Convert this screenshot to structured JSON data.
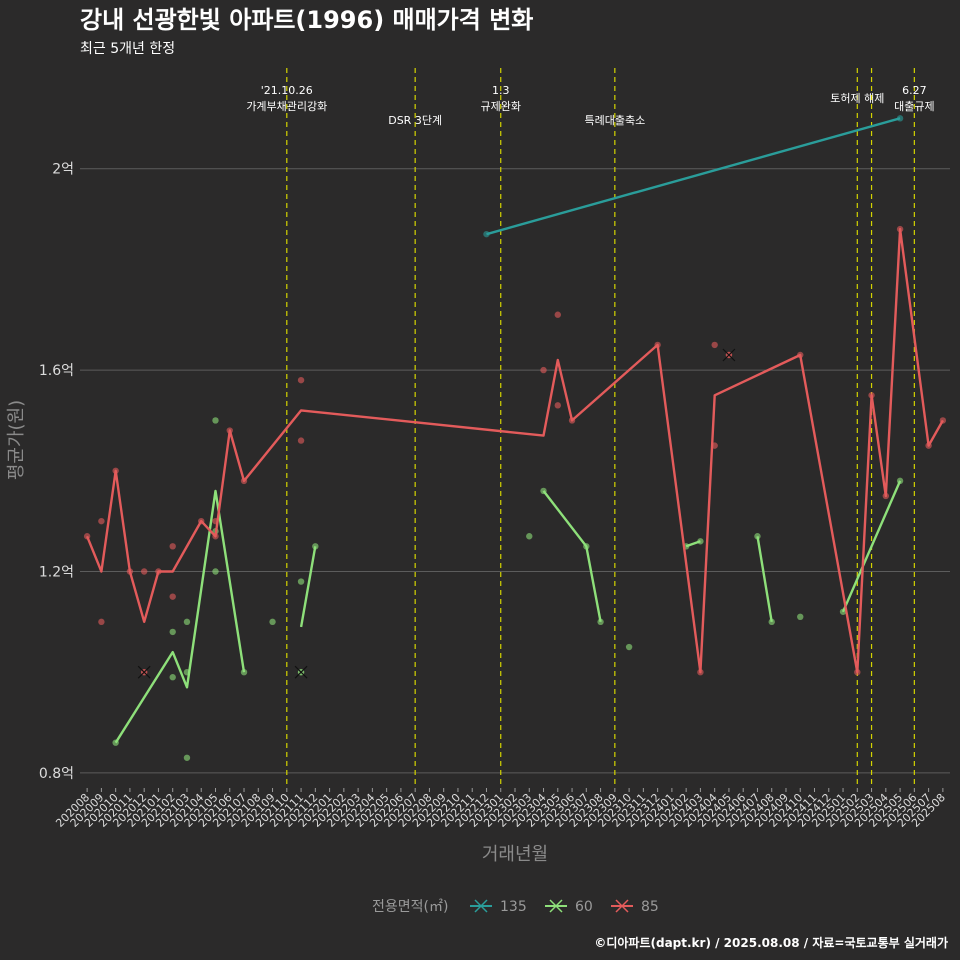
{
  "chart_data": {
    "type": "line",
    "title": "강내 선광한빛 아파트(1996) 매매가격 변화",
    "subtitle": "최근 5개년 한정",
    "xlabel": "거래년월",
    "ylabel": "평균가(원)",
    "caption": "©디아파트(dapt.kr) / 2025.08.08 / 자료=국토교통부 실거래가",
    "grid": true,
    "legend_position": "bottom",
    "legend_title": "전용면적(㎡)",
    "yticks": [
      {
        "value": 0.8,
        "label": "0.8억"
      },
      {
        "value": 1.2,
        "label": "1.2억"
      },
      {
        "value": 1.6,
        "label": "1.6억"
      },
      {
        "value": 2.0,
        "label": "2억"
      }
    ],
    "ylim": [
      0.77,
      2.2
    ],
    "categories": [
      "202008",
      "202009",
      "202010",
      "202011",
      "202012",
      "202101",
      "202102",
      "202103",
      "202104",
      "202105",
      "202106",
      "202107",
      "202108",
      "202109",
      "202110",
      "202111",
      "202112",
      "202201",
      "202202",
      "202203",
      "202204",
      "202205",
      "202206",
      "202207",
      "202208",
      "202209",
      "202210",
      "202211",
      "202212",
      "202301",
      "202302",
      "202303",
      "202304",
      "202305",
      "202306",
      "202307",
      "202308",
      "202309",
      "202310",
      "202311",
      "202312",
      "202401",
      "202402",
      "202403",
      "202404",
      "202405",
      "202406",
      "202407",
      "202408",
      "202409",
      "202410",
      "202411",
      "202412",
      "202501",
      "202502",
      "202503",
      "202504",
      "202505",
      "202506",
      "202507",
      "202508"
    ],
    "events": [
      {
        "x": "202110",
        "lines": [
          "'21.10.26",
          "가계부채관리강화"
        ]
      },
      {
        "x": "202207",
        "lines": [
          "DSR 3단계"
        ]
      },
      {
        "x": "202301",
        "lines": [
          "1.3",
          "규제완화"
        ]
      },
      {
        "x": "202309",
        "lines": [
          "특례대출축소"
        ]
      },
      {
        "x": "202502",
        "lines": [
          "토허제 해제"
        ]
      },
      {
        "x": "202503",
        "lines": []
      },
      {
        "x": "202506",
        "lines": [
          "6.27",
          "대출규제"
        ]
      }
    ],
    "series": [
      {
        "name": "135",
        "color": "#2a9d9a",
        "line": [
          [
            "202212",
            1.87
          ],
          [
            "202505",
            2.1
          ]
        ],
        "points": [
          [
            "202212",
            1.87
          ],
          [
            "202505",
            2.1
          ]
        ],
        "crosses": []
      },
      {
        "name": "60",
        "color": "#8ee07a",
        "line": [
          [
            "202010",
            0.86
          ],
          [
            "202102",
            1.04
          ],
          [
            "202103",
            0.97
          ],
          [
            "202105",
            1.36
          ],
          [
            "202107",
            1.0
          ],
          null,
          [
            "202111",
            1.09
          ],
          [
            "202112",
            1.25
          ],
          null,
          [
            "202304",
            1.36
          ],
          [
            "202307",
            1.25
          ],
          [
            "202308",
            1.1
          ],
          null,
          [
            "202402",
            1.25
          ],
          [
            "202403",
            1.26
          ],
          null,
          [
            "202407",
            1.27
          ],
          [
            "202408",
            1.1
          ],
          null,
          [
            "202501",
            1.12
          ],
          [
            "202505",
            1.38
          ]
        ],
        "points": [
          [
            "202010",
            0.86
          ],
          [
            "202102",
            1.08
          ],
          [
            "202102",
            0.99
          ],
          [
            "202103",
            1.1
          ],
          [
            "202103",
            1.0
          ],
          [
            "202103",
            0.83
          ],
          [
            "202105",
            1.5
          ],
          [
            "202105",
            1.2
          ],
          [
            "202105",
            1.28
          ],
          [
            "202107",
            1.0
          ],
          [
            "202109",
            1.1
          ],
          [
            "202111",
            1.18
          ],
          [
            "202112",
            1.25
          ],
          [
            "202303",
            1.27
          ],
          [
            "202304",
            1.36
          ],
          [
            "202307",
            1.25
          ],
          [
            "202308",
            1.1
          ],
          [
            "202310",
            1.05
          ],
          [
            "202402",
            1.25
          ],
          [
            "202403",
            1.26
          ],
          [
            "202407",
            1.27
          ],
          [
            "202408",
            1.1
          ],
          [
            "202410",
            1.11
          ],
          [
            "202501",
            1.12
          ],
          [
            "202505",
            1.38
          ]
        ],
        "crosses": [
          [
            "202111",
            1.0
          ]
        ]
      },
      {
        "name": "85",
        "color": "#e35b5b",
        "line": [
          [
            "202008",
            1.27
          ],
          [
            "202009",
            1.2
          ],
          [
            "202010",
            1.4
          ],
          [
            "202011",
            1.2
          ],
          [
            "202012",
            1.1
          ],
          [
            "202101",
            1.2
          ],
          [
            "202102",
            1.2
          ],
          [
            "202104",
            1.3
          ],
          [
            "202105",
            1.27
          ],
          [
            "202106",
            1.48
          ],
          [
            "202107",
            1.38
          ],
          [
            "202111",
            1.52
          ],
          [
            "202304",
            1.47
          ],
          [
            "202305",
            1.62
          ],
          [
            "202306",
            1.5
          ],
          [
            "202312",
            1.65
          ],
          [
            "202403",
            1.0
          ],
          [
            "202404",
            1.55
          ],
          [
            "202410",
            1.63
          ],
          [
            "202502",
            1.0
          ],
          [
            "202503",
            1.55
          ],
          [
            "202504",
            1.35
          ],
          [
            "202505",
            1.88
          ],
          [
            "202507",
            1.45
          ],
          [
            "202508",
            1.5
          ]
        ],
        "points": [
          [
            "202008",
            1.27
          ],
          [
            "202009",
            1.3
          ],
          [
            "202009",
            1.1
          ],
          [
            "202010",
            1.4
          ],
          [
            "202011",
            1.2
          ],
          [
            "202012",
            1.2
          ],
          [
            "202101",
            1.2
          ],
          [
            "202102",
            1.25
          ],
          [
            "202102",
            1.15
          ],
          [
            "202104",
            1.3
          ],
          [
            "202105",
            1.3
          ],
          [
            "202105",
            1.27
          ],
          [
            "202106",
            1.48
          ],
          [
            "202107",
            1.38
          ],
          [
            "202111",
            1.58
          ],
          [
            "202111",
            1.46
          ],
          [
            "202304",
            1.6
          ],
          [
            "202305",
            1.71
          ],
          [
            "202305",
            1.53
          ],
          [
            "202306",
            1.5
          ],
          [
            "202312",
            1.65
          ],
          [
            "202403",
            1.0
          ],
          [
            "202404",
            1.65
          ],
          [
            "202404",
            1.45
          ],
          [
            "202410",
            1.63
          ],
          [
            "202502",
            1.0
          ],
          [
            "202503",
            1.55
          ],
          [
            "202504",
            1.35
          ],
          [
            "202505",
            1.88
          ],
          [
            "202507",
            1.45
          ],
          [
            "202508",
            1.5
          ]
        ],
        "crosses": [
          [
            "202012",
            1.0
          ],
          [
            "202405",
            1.63
          ]
        ]
      }
    ]
  }
}
